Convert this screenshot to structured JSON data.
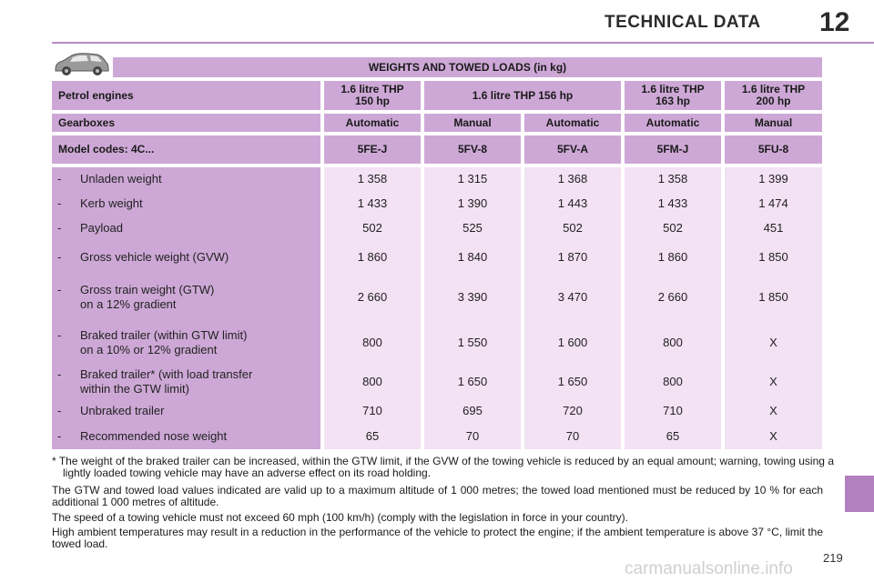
{
  "header": {
    "title": "TECHNICAL DATA",
    "chapter": "12"
  },
  "table": {
    "title": "WEIGHTS AND TOWED LOADS (in kg)",
    "engine_label": "Petrol engines",
    "engines": [
      "1.6 litre THP\n150 hp",
      "1.6 litre THP 156 hp",
      "1.6 litre THP\n163 hp",
      "1.6 litre THP\n200 hp"
    ],
    "gearbox_label": "Gearboxes",
    "gearboxes": [
      "Automatic",
      "Manual",
      "Automatic",
      "Automatic",
      "Manual"
    ],
    "model_label": "Model codes: 4C...",
    "model_codes": [
      "5FE-J",
      "5FV-8",
      "5FV-A",
      "5FM-J",
      "5FU-8"
    ],
    "rows": [
      {
        "dash": "-",
        "label": "Unladen weight",
        "values": [
          "1 358",
          "1 315",
          "1 368",
          "1 358",
          "1 399"
        ]
      },
      {
        "dash": "-",
        "label": "Kerb weight",
        "values": [
          "1 433",
          "1 390",
          "1 443",
          "1 433",
          "1 474"
        ]
      },
      {
        "dash": "-",
        "label": "Payload",
        "values": [
          "502",
          "525",
          "502",
          "502",
          "451"
        ]
      },
      {
        "dash": "-",
        "label": "Gross vehicle weight (GVW)",
        "values": [
          "1 860",
          "1 840",
          "1 870",
          "1 860",
          "1 850"
        ]
      },
      {
        "dash": "-",
        "label": "Gross train weight (GTW)\non a 12% gradient",
        "values": [
          "2 660",
          "3 390",
          "3 470",
          "2 660",
          "1 850"
        ]
      },
      {
        "dash": "-",
        "label": "Braked trailer (within GTW limit)\non a 10% or 12% gradient",
        "values": [
          "800",
          "1 550",
          "1 600",
          "800",
          "X"
        ]
      },
      {
        "dash": "-",
        "label": "Braked trailer* (with load transfer\nwithin the GTW limit)",
        "values": [
          "800",
          "1 650",
          "1 650",
          "800",
          "X"
        ]
      },
      {
        "dash": "-",
        "label": "Unbraked trailer",
        "values": [
          "710",
          "695",
          "720",
          "710",
          "X"
        ]
      },
      {
        "dash": "-",
        "label": "Recommended nose weight",
        "values": [
          "65",
          "70",
          "70",
          "65",
          "X"
        ]
      }
    ]
  },
  "notes": {
    "footnote": "* The weight of the braked trailer can be increased, within the GTW limit, if the GVW of the towing vehicle is reduced by an equal amount; warning, towing using a lightly loaded towing vehicle may have an adverse effect on its road holding.",
    "para1": "The GTW and towed load values indicated are valid up to a maximum altitude of 1 000 metres; the towed load mentioned must be reduced by 10 % for each additional 1 000 metres of altitude.",
    "para2": "The speed of a towing vehicle must not exceed 60 mph (100 km/h) (comply with the legislation in force in your country).",
    "para3": "High ambient temperatures may result in a reduction in the performance of the vehicle to protect the engine; if the ambient temperature is above 37 °C, limit the towed load."
  },
  "page_number": "219",
  "watermark": "carmanualsonline.info",
  "colors": {
    "accent": "#b27fbf",
    "header_fill": "#cda8d6",
    "body_fill": "#f3e1f4"
  },
  "icons": {
    "car": "car-icon"
  }
}
